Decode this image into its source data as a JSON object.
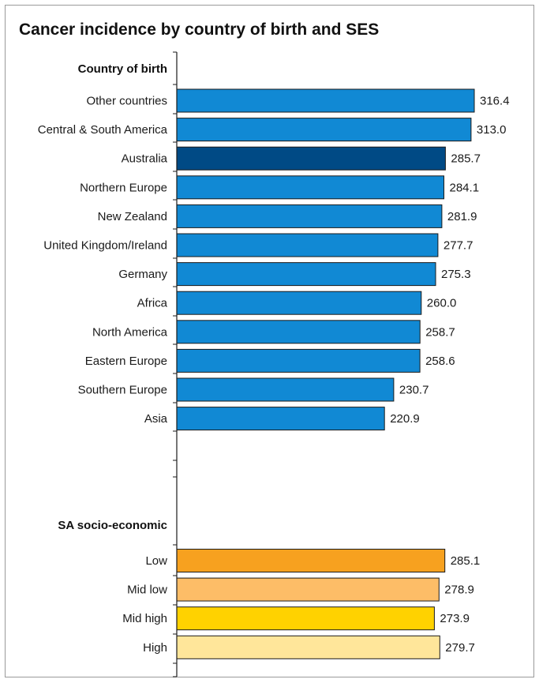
{
  "chart_data": {
    "type": "bar",
    "orientation": "horizontal",
    "title": "Cancer incidence by country of birth and SES",
    "xlim": [
      0,
      316.4
    ],
    "groups": [
      {
        "label": "Country of birth",
        "categories": [
          "Other countries",
          "Central & South America",
          "Australia",
          "Northern Europe",
          "New Zealand",
          "United Kingdom/Ireland",
          "Germany",
          "Africa",
          "North America",
          "Eastern Europe",
          "Southern Europe",
          "Asia"
        ],
        "values": [
          316.4,
          313.0,
          285.7,
          284.1,
          281.9,
          277.7,
          275.3,
          260.0,
          258.7,
          258.6,
          230.7,
          220.9
        ],
        "value_labels": [
          "316.4",
          "313.0",
          "285.7",
          "284.1",
          "281.9",
          "277.7",
          "275.3",
          "260.0",
          "258.7",
          "258.6",
          "230.7",
          "220.9"
        ],
        "colors": [
          "#1189d4",
          "#1189d4",
          "#004a85",
          "#1189d4",
          "#1189d4",
          "#1189d4",
          "#1189d4",
          "#1189d4",
          "#1189d4",
          "#1189d4",
          "#1189d4",
          "#1189d4"
        ]
      },
      {
        "label": "SA socio-economic",
        "categories": [
          "Low",
          "Mid low",
          "Mid high",
          "High"
        ],
        "values": [
          285.1,
          278.9,
          273.9,
          279.7
        ],
        "value_labels": [
          "285.1",
          "278.9",
          "273.9",
          "279.7"
        ],
        "colors": [
          "#f7a11f",
          "#fdbd67",
          "#ffd200",
          "#ffe69a"
        ]
      }
    ]
  }
}
